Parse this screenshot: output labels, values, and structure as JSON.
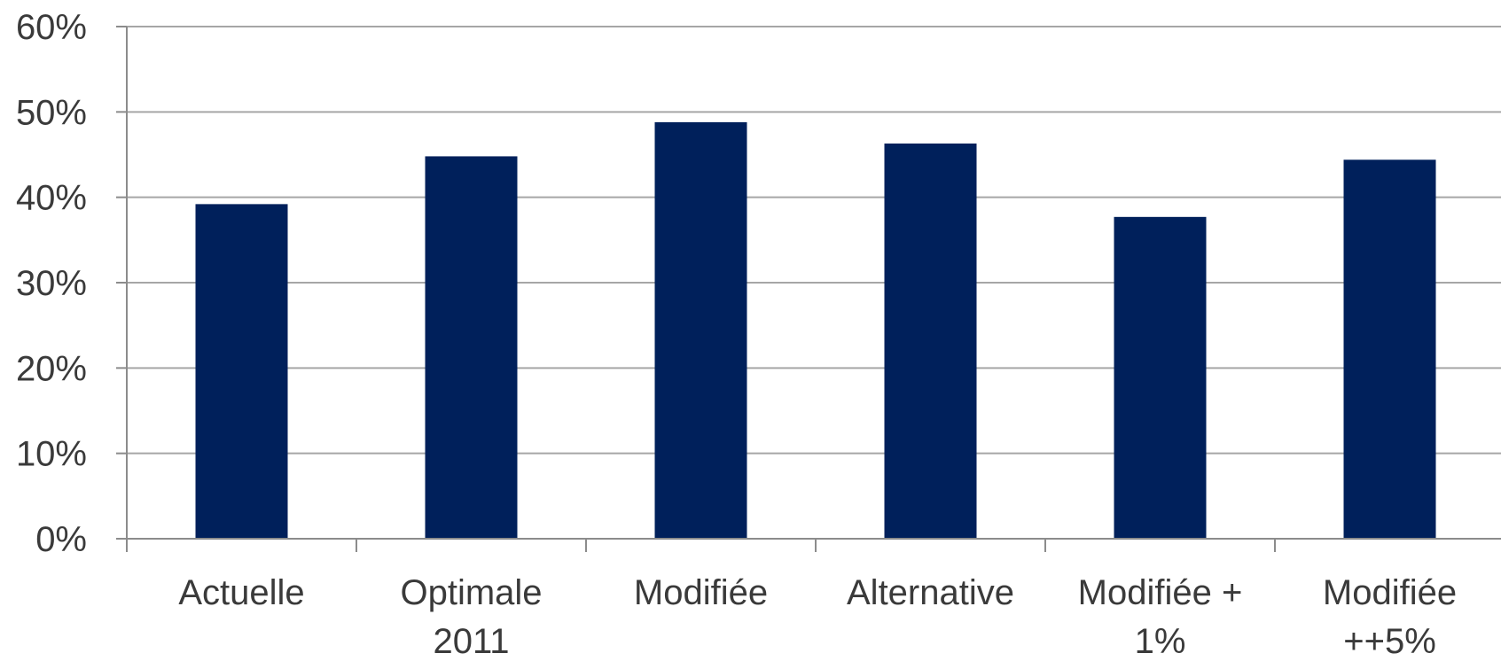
{
  "chart_data": {
    "type": "bar",
    "categories": [
      [
        "Actuelle"
      ],
      [
        "Optimale",
        "2011"
      ],
      [
        "Modifiée"
      ],
      [
        "Alternative"
      ],
      [
        "Modifiée +",
        "1%"
      ],
      [
        "Modifiée",
        "++5%"
      ]
    ],
    "values": [
      39.2,
      44.8,
      48.8,
      46.3,
      37.7,
      44.4
    ],
    "value_unit": "%",
    "ylim": [
      0,
      60
    ],
    "yticks": [
      0,
      10,
      20,
      30,
      40,
      50,
      60
    ],
    "ytick_labels": [
      "0%",
      "10%",
      "20%",
      "30%",
      "40%",
      "50%",
      "60%"
    ],
    "title": "",
    "xlabel": "",
    "ylabel": "",
    "grid": true,
    "legend": "none",
    "bar_color": "#00205b"
  }
}
